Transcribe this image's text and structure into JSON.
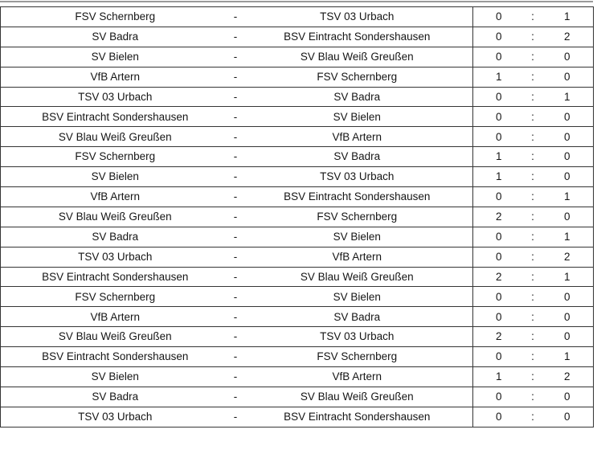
{
  "page": {
    "background": "#ffffff",
    "top_rule_color": "#9a9a9a",
    "table_border_color": "#353535",
    "text_color": "#161616"
  },
  "table": {
    "dash": "-",
    "colon": ":",
    "teams": [
      "FSV Schernberg",
      "TSV 03 Urbach",
      "SV Badra",
      "BSV Eintracht Sondershausen",
      "SV Bielen",
      "SV Blau Weiß Greußen",
      "VfB Artern"
    ],
    "matches": [
      {
        "home": "FSV Schernberg",
        "away": "TSV 03 Urbach",
        "home_score": "0",
        "away_score": "1"
      },
      {
        "home": "SV Badra",
        "away": "BSV Eintracht Sondershausen",
        "home_score": "0",
        "away_score": "2"
      },
      {
        "home": "SV Bielen",
        "away": "SV Blau Weiß Greußen",
        "home_score": "0",
        "away_score": "0"
      },
      {
        "home": "VfB Artern",
        "away": "FSV Schernberg",
        "home_score": "1",
        "away_score": "0"
      },
      {
        "home": "TSV 03 Urbach",
        "away": "SV Badra",
        "home_score": "0",
        "away_score": "1"
      },
      {
        "home": "BSV Eintracht Sondershausen",
        "away": "SV Bielen",
        "home_score": "0",
        "away_score": "0"
      },
      {
        "home": "SV Blau Weiß Greußen",
        "away": "VfB Artern",
        "home_score": "0",
        "away_score": "0"
      },
      {
        "home": "FSV Schernberg",
        "away": "SV Badra",
        "home_score": "1",
        "away_score": "0"
      },
      {
        "home": "SV Bielen",
        "away": "TSV 03 Urbach",
        "home_score": "1",
        "away_score": "0"
      },
      {
        "home": "VfB Artern",
        "away": "BSV Eintracht Sondershausen",
        "home_score": "0",
        "away_score": "1"
      },
      {
        "home": "SV Blau Weiß Greußen",
        "away": "FSV Schernberg",
        "home_score": "2",
        "away_score": "0"
      },
      {
        "home": "SV Badra",
        "away": "SV Bielen",
        "home_score": "0",
        "away_score": "1"
      },
      {
        "home": "TSV 03 Urbach",
        "away": "VfB Artern",
        "home_score": "0",
        "away_score": "2"
      },
      {
        "home": "BSV Eintracht Sondershausen",
        "away": "SV Blau Weiß Greußen",
        "home_score": "2",
        "away_score": "1"
      },
      {
        "home": "FSV Schernberg",
        "away": "SV Bielen",
        "home_score": "0",
        "away_score": "0"
      },
      {
        "home": "VfB Artern",
        "away": "SV Badra",
        "home_score": "0",
        "away_score": "0"
      },
      {
        "home": "SV Blau Weiß Greußen",
        "away": "TSV 03 Urbach",
        "home_score": "2",
        "away_score": "0"
      },
      {
        "home": "BSV Eintracht Sondershausen",
        "away": "FSV Schernberg",
        "home_score": "0",
        "away_score": "1"
      },
      {
        "home": "SV Bielen",
        "away": "VfB Artern",
        "home_score": "1",
        "away_score": "2"
      },
      {
        "home": "SV Badra",
        "away": "SV Blau Weiß Greußen",
        "home_score": "0",
        "away_score": "0"
      },
      {
        "home": "TSV 03 Urbach",
        "away": "BSV Eintracht Sondershausen",
        "home_score": "0",
        "away_score": "0"
      }
    ]
  }
}
